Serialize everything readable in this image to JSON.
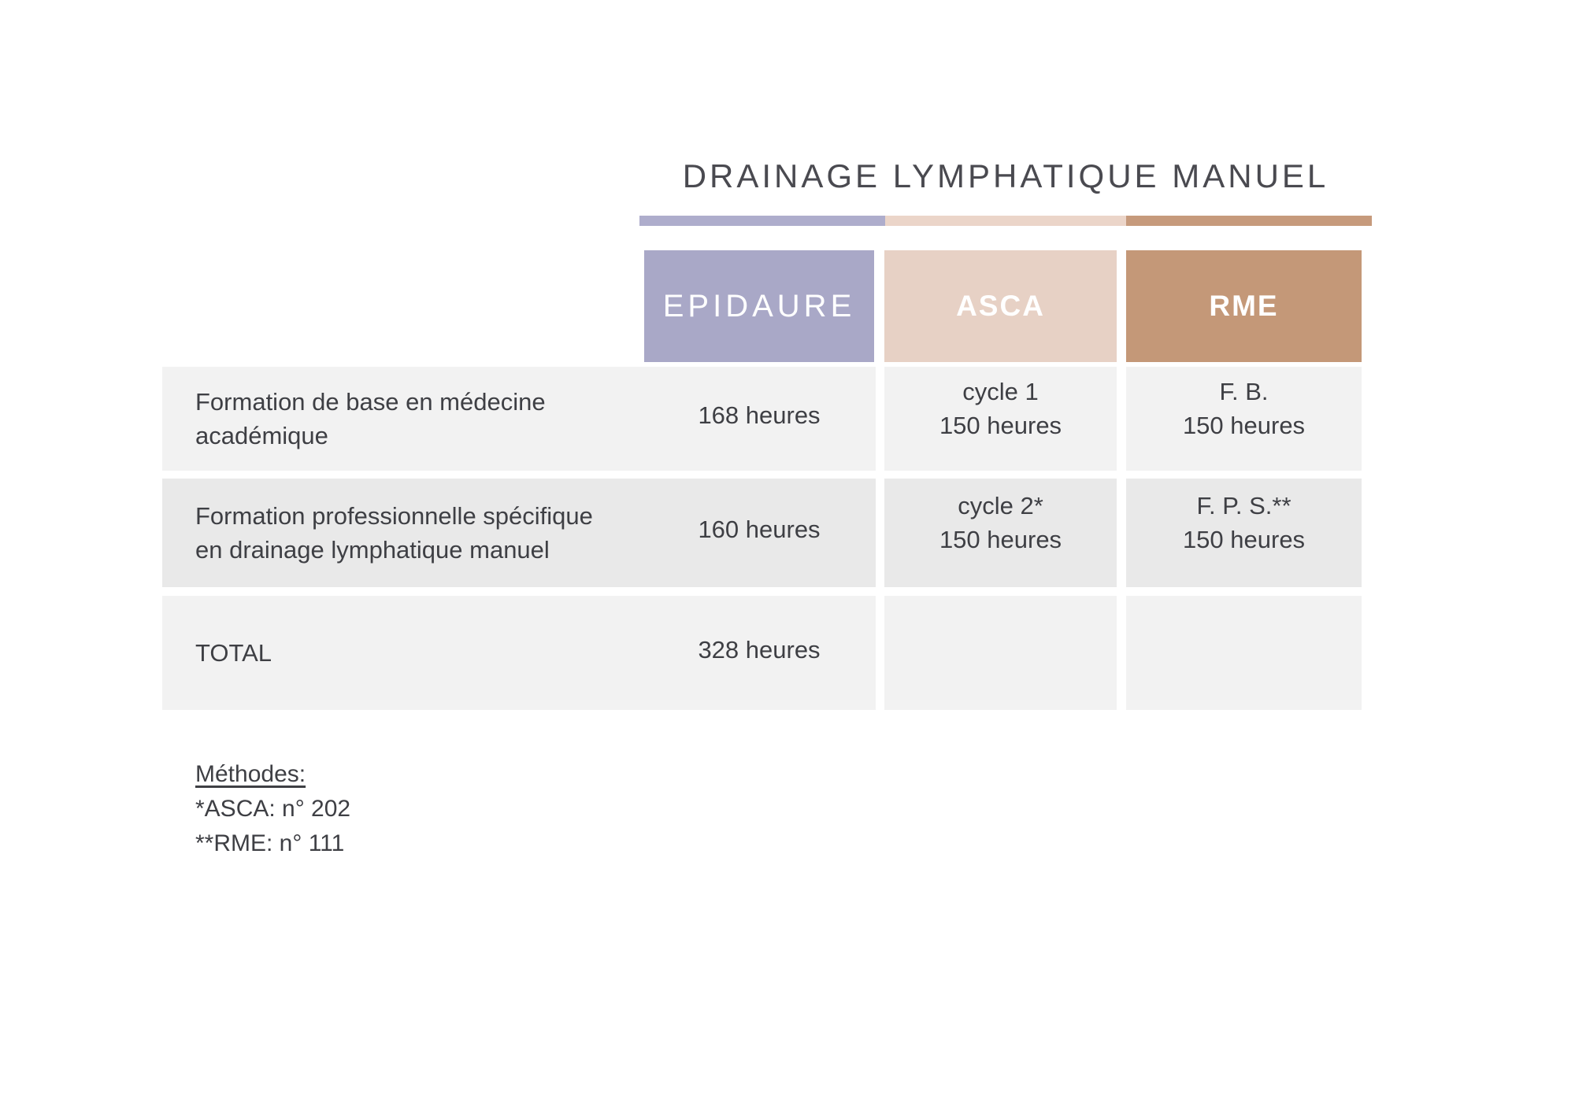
{
  "title": "DRAINAGE LYMPHATIQUE MANUEL",
  "table": {
    "columns": [
      {
        "id": "epidaure",
        "label": "EPIDAURE"
      },
      {
        "id": "asca",
        "label": "ASCA"
      },
      {
        "id": "rme",
        "label": "RME"
      }
    ],
    "rows": [
      {
        "label": "Formation de base en médecine\nacadémique",
        "epidaure": "168 heures",
        "asca": "cycle 1\n150 heures",
        "rme": "F. B.\n150 heures"
      },
      {
        "label": "Formation professionnelle spécifique\nen drainage lymphatique manuel",
        "epidaure": "160 heures",
        "asca": "cycle 2*\n150 heures",
        "rme": "F. P. S.**\n150 heures"
      },
      {
        "label": "TOTAL",
        "epidaure": "328 heures",
        "asca": "",
        "rme": ""
      }
    ]
  },
  "footnotes": {
    "heading": "Méthodes:",
    "items": [
      "*ASCA: n° 202",
      "**RME: n° 111"
    ]
  },
  "colors": {
    "accent_epidaure": "#aeadcc",
    "accent_asca": "#ebd5c9",
    "accent_rme": "#c69a7c",
    "header_epidaure": "#a9a8c7",
    "header_asca": "#e7d1c5",
    "header_rme": "#c49878",
    "row_light": "#f2f2f2",
    "row_dark": "#e9e9e9",
    "title_text": "#4a4a50",
    "body_text": "#3e3f44",
    "header_text": "#ffffff"
  }
}
